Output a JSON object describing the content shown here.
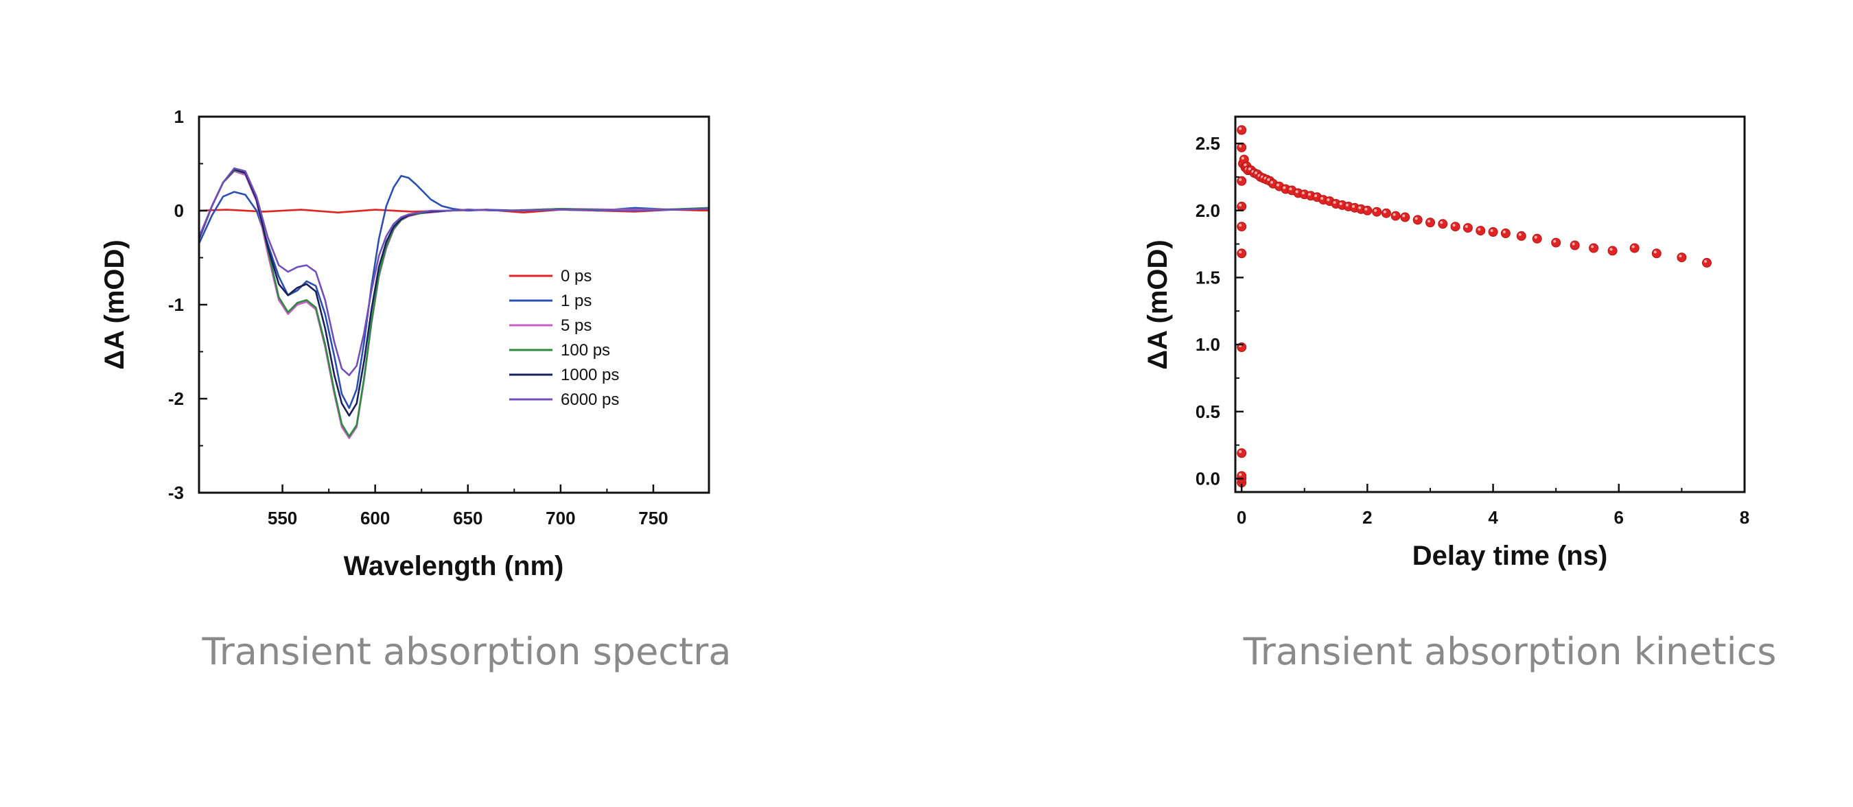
{
  "chart_data": [
    {
      "type": "line",
      "caption": "Transient absorption spectra",
      "xlabel": "Wavelength (nm)",
      "ylabel": "ΔA (mOD)",
      "xlim": [
        505,
        780
      ],
      "ylim": [
        -3,
        1
      ],
      "xticks": [
        550,
        600,
        650,
        700,
        750
      ],
      "yticks": [
        1,
        0,
        -1,
        -2,
        -3
      ],
      "grid": false,
      "legend_position": "center-right",
      "series": [
        {
          "name": "0 ps",
          "color": "#e02424",
          "x": [
            505,
            520,
            540,
            560,
            580,
            600,
            620,
            640,
            660,
            680,
            700,
            720,
            740,
            760,
            780
          ],
          "y": [
            0.0,
            0.01,
            -0.01,
            0.01,
            -0.02,
            0.01,
            -0.01,
            0.0,
            0.01,
            -0.02,
            0.01,
            0.0,
            -0.01,
            0.01,
            0.0
          ]
        },
        {
          "name": "1 ps",
          "color": "#2a4fb0",
          "x": [
            505,
            512,
            518,
            524,
            530,
            536,
            542,
            548,
            553,
            558,
            563,
            568,
            573,
            578,
            582,
            586,
            590,
            594,
            598,
            602,
            606,
            610,
            614,
            618,
            622,
            626,
            630,
            636,
            642,
            650,
            660,
            680,
            700,
            720,
            740,
            760,
            780
          ],
          "y": [
            -0.35,
            -0.05,
            0.15,
            0.2,
            0.17,
            0.0,
            -0.35,
            -0.7,
            -0.9,
            -0.85,
            -0.75,
            -0.8,
            -1.1,
            -1.55,
            -1.95,
            -2.1,
            -1.9,
            -1.4,
            -0.8,
            -0.3,
            0.05,
            0.25,
            0.37,
            0.35,
            0.28,
            0.2,
            0.12,
            0.05,
            0.02,
            0.0,
            0.01,
            0.0,
            0.02,
            0.0,
            0.03,
            0.01,
            0.03
          ]
        },
        {
          "name": "5 ps",
          "color": "#c85ec8",
          "x": [
            505,
            512,
            518,
            524,
            530,
            536,
            542,
            548,
            553,
            558,
            563,
            568,
            573,
            578,
            582,
            586,
            590,
            594,
            598,
            602,
            606,
            610,
            614,
            618,
            624,
            630,
            640,
            650,
            670,
            700,
            740,
            780
          ],
          "y": [
            -0.3,
            0.05,
            0.3,
            0.42,
            0.38,
            0.1,
            -0.45,
            -0.95,
            -1.1,
            -1.0,
            -0.97,
            -1.05,
            -1.45,
            -1.95,
            -2.3,
            -2.42,
            -2.3,
            -1.8,
            -1.2,
            -0.7,
            -0.4,
            -0.2,
            -0.1,
            -0.06,
            -0.03,
            -0.02,
            0.0,
            0.01,
            0.0,
            0.02,
            0.01,
            0.02
          ]
        },
        {
          "name": "100 ps",
          "color": "#2e8b3e",
          "x": [
            505,
            512,
            518,
            524,
            530,
            536,
            542,
            548,
            553,
            558,
            563,
            568,
            573,
            578,
            582,
            586,
            590,
            594,
            598,
            602,
            606,
            610,
            614,
            618,
            624,
            630,
            640,
            650,
            670,
            700,
            740,
            780
          ],
          "y": [
            -0.3,
            0.05,
            0.3,
            0.43,
            0.4,
            0.12,
            -0.4,
            -0.92,
            -1.08,
            -0.98,
            -0.95,
            -1.03,
            -1.42,
            -1.92,
            -2.27,
            -2.4,
            -2.28,
            -1.78,
            -1.18,
            -0.68,
            -0.38,
            -0.19,
            -0.1,
            -0.05,
            -0.03,
            -0.01,
            0.0,
            0.01,
            0.0,
            0.02,
            0.0,
            0.03
          ]
        },
        {
          "name": "1000 ps",
          "color": "#1a1f5e",
          "x": [
            505,
            512,
            518,
            524,
            530,
            536,
            542,
            548,
            553,
            558,
            563,
            568,
            573,
            578,
            582,
            586,
            590,
            594,
            598,
            602,
            606,
            610,
            614,
            618,
            624,
            630,
            640,
            650,
            670,
            700,
            740,
            780
          ],
          "y": [
            -0.3,
            0.05,
            0.3,
            0.44,
            0.4,
            0.12,
            -0.38,
            -0.78,
            -0.9,
            -0.82,
            -0.78,
            -0.86,
            -1.25,
            -1.75,
            -2.05,
            -2.18,
            -2.05,
            -1.6,
            -1.05,
            -0.6,
            -0.33,
            -0.17,
            -0.09,
            -0.05,
            -0.02,
            -0.01,
            0.0,
            0.01,
            0.0,
            0.01,
            0.0,
            0.02
          ]
        },
        {
          "name": "6000 ps",
          "color": "#7050b8",
          "x": [
            505,
            512,
            518,
            524,
            530,
            536,
            542,
            548,
            553,
            558,
            563,
            568,
            573,
            578,
            582,
            586,
            590,
            594,
            598,
            602,
            606,
            610,
            614,
            618,
            624,
            630,
            640,
            650,
            670,
            700,
            740,
            780
          ],
          "y": [
            -0.28,
            0.05,
            0.3,
            0.45,
            0.42,
            0.15,
            -0.28,
            -0.58,
            -0.65,
            -0.6,
            -0.58,
            -0.65,
            -0.95,
            -1.4,
            -1.68,
            -1.75,
            -1.65,
            -1.3,
            -0.85,
            -0.48,
            -0.27,
            -0.14,
            -0.07,
            -0.04,
            -0.02,
            0.0,
            0.0,
            0.01,
            0.0,
            0.01,
            0.0,
            0.02
          ]
        }
      ]
    },
    {
      "type": "scatter",
      "caption": "Transient absorption kinetics",
      "xlabel": "Delay time (ns)",
      "ylabel": "ΔA (mOD)",
      "xlim": [
        -0.1,
        8
      ],
      "ylim": [
        -0.1,
        2.7
      ],
      "xticks": [
        0,
        2,
        4,
        6,
        8
      ],
      "yticks": [
        0.0,
        0.5,
        1.0,
        1.5,
        2.0,
        2.5
      ],
      "grid": false,
      "series": [
        {
          "color": "#e02424",
          "x": [
            0,
            0,
            0,
            0,
            0,
            0,
            0,
            0,
            0,
            0,
            0,
            0.02,
            0.04,
            0.06,
            0.08,
            0.1,
            0.15,
            0.2,
            0.25,
            0.3,
            0.35,
            0.4,
            0.45,
            0.5,
            0.6,
            0.7,
            0.8,
            0.9,
            1.0,
            1.1,
            1.2,
            1.3,
            1.4,
            1.5,
            1.6,
            1.7,
            1.8,
            1.9,
            2.0,
            2.15,
            2.3,
            2.45,
            2.6,
            2.8,
            3.0,
            3.2,
            3.4,
            3.6,
            3.8,
            4.0,
            4.2,
            4.45,
            4.7,
            5.0,
            5.3,
            5.6,
            5.9,
            6.25,
            6.6,
            7.0,
            7.4
          ],
          "y": [
            -0.03,
            0.0,
            0.02,
            0.19,
            0.98,
            1.68,
            1.88,
            2.03,
            2.22,
            2.47,
            2.6,
            2.35,
            2.38,
            2.32,
            2.33,
            2.3,
            2.3,
            2.28,
            2.27,
            2.25,
            2.24,
            2.23,
            2.22,
            2.2,
            2.18,
            2.16,
            2.15,
            2.13,
            2.12,
            2.11,
            2.1,
            2.08,
            2.07,
            2.05,
            2.04,
            2.03,
            2.02,
            2.01,
            2.0,
            1.99,
            1.98,
            1.96,
            1.95,
            1.93,
            1.91,
            1.9,
            1.88,
            1.87,
            1.85,
            1.84,
            1.83,
            1.81,
            1.79,
            1.76,
            1.74,
            1.72,
            1.7,
            1.72,
            1.68,
            1.65,
            1.61
          ]
        }
      ]
    }
  ]
}
